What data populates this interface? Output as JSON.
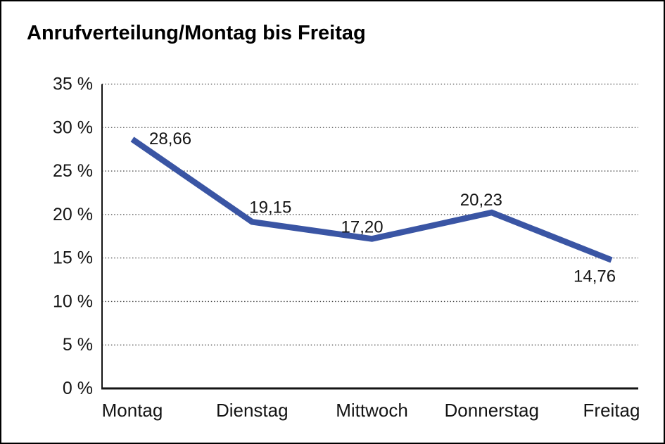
{
  "title": "Anrufverteilung/Montag bis Freitag",
  "chart_data": {
    "type": "line",
    "title": "Anrufverteilung/Montag bis Freitag",
    "categories": [
      "Montag",
      "Dienstag",
      "Mittwoch",
      "Donnerstag",
      "Freitag"
    ],
    "series": [
      {
        "name": "Anrufverteilung",
        "values": [
          28.66,
          19.15,
          17.2,
          20.23,
          14.76
        ]
      }
    ],
    "data_labels": [
      "28,66",
      "19,15",
      "17,20",
      "20,23",
      "14,76"
    ],
    "ylim": [
      0,
      35
    ],
    "ytick_step": 5,
    "ytick_labels": [
      "0 %",
      "5 %",
      "10 %",
      "15 %",
      "20 %",
      "25 %",
      "30 %",
      "35 %"
    ],
    "xlabel": "",
    "ylabel": "",
    "grid": "horizontal-dotted",
    "legend": "none",
    "line_color": "#3A55A4",
    "decimal_separator": ","
  },
  "colors": {
    "line": "#3A55A4",
    "axis": "#141414",
    "grid": "#4a4a4a",
    "text": "#141414",
    "background": "#ffffff",
    "border": "#000000"
  }
}
